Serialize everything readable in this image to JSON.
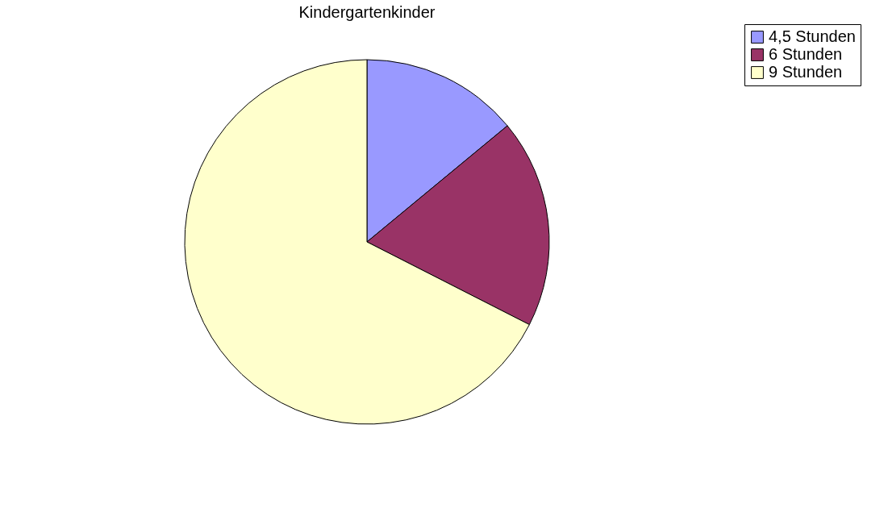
{
  "chart_data": {
    "type": "pie",
    "title": "Kindergartenkinder",
    "categories": [
      "4,5 Stunden",
      "6 Stunden",
      "9 Stunden"
    ],
    "values": [
      14,
      18.5,
      67.5
    ],
    "colors": [
      "#9999ff",
      "#993366",
      "#ffffcc"
    ],
    "legend": "right"
  }
}
